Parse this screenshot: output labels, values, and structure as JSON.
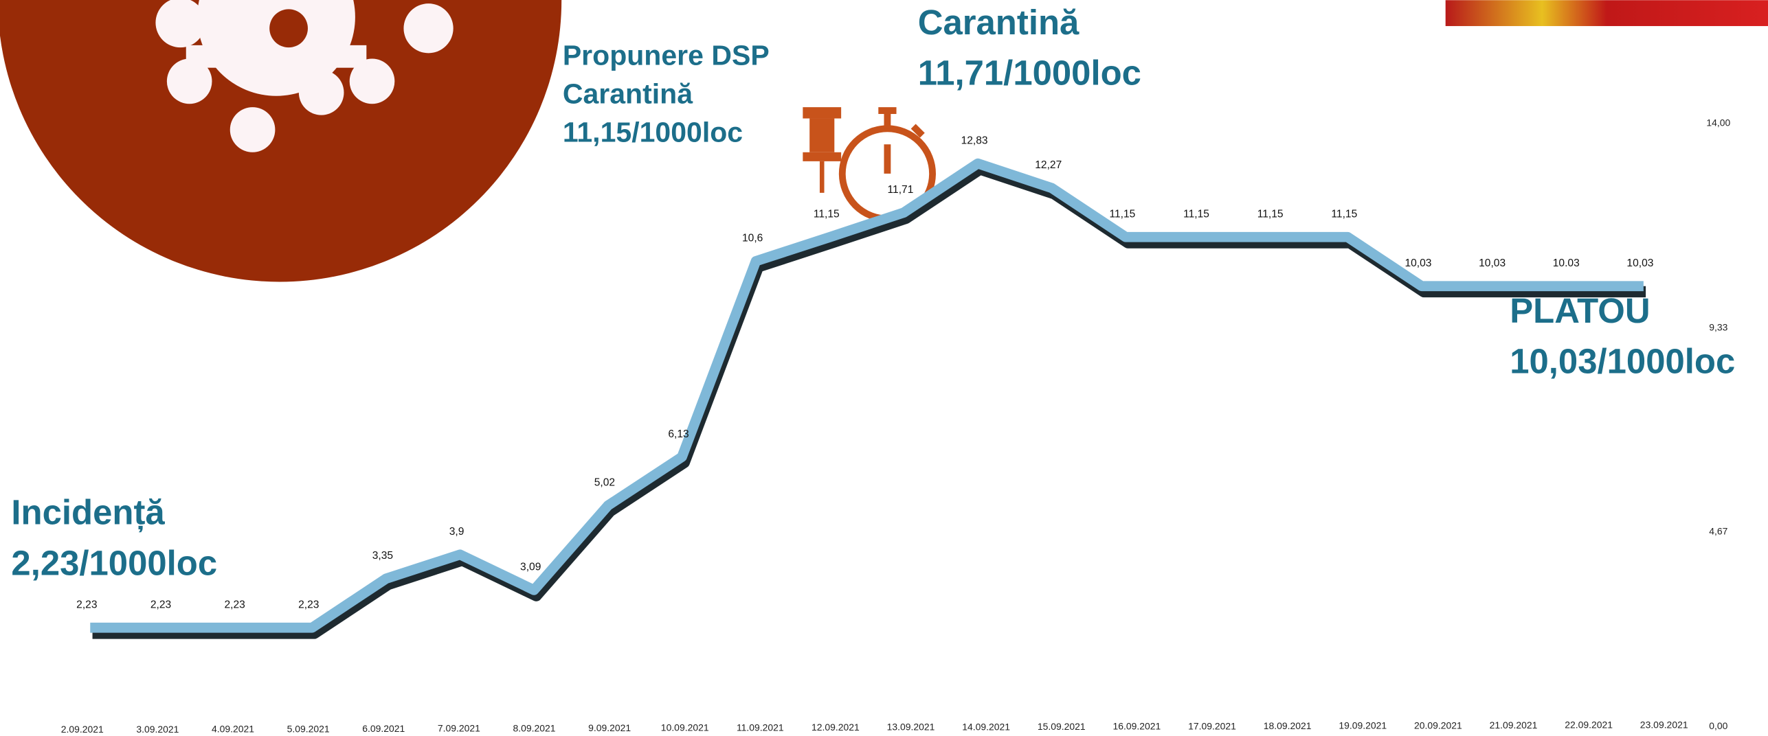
{
  "chart_data": {
    "type": "line",
    "categories": [
      "2.09.2021",
      "3.09.2021",
      "4.09.2021",
      "5.09.2021",
      "6.09.2021",
      "7.09.2021",
      "8.09.2021",
      "9.09.2021",
      "10.09.2021",
      "11.09.2021",
      "12.09.2021",
      "13.09.2021",
      "14.09.2021",
      "15.09.2021",
      "16.09.2021",
      "17.09.2021",
      "18.09.2021",
      "19.09.2021",
      "20.09.2021",
      "21.09.2021",
      "22.09.2021",
      "23.09.2021"
    ],
    "series": [
      {
        "color": "#7fb8d8",
        "values": [
          2.23,
          2.23,
          2.23,
          2.23,
          3.35,
          3.9,
          3.09,
          5.02,
          6.13,
          10.6,
          11.15,
          11.71,
          12.83,
          12.27,
          11.15,
          11.15,
          11.15,
          11.15,
          10.03,
          10.03,
          10.03,
          10.03
        ],
        "value_labels": [
          "2,23",
          "2,23",
          "2,23",
          "2,23",
          "3,35",
          "3,9",
          "3,09",
          "5,02",
          "6,13",
          "10,6",
          "11,15",
          "11,71",
          "12,83",
          "12,27",
          "11,15",
          "11,15",
          "11,15",
          "11,15",
          "10,03",
          "10,03",
          "10.03",
          "10,03"
        ]
      }
    ],
    "ylim": [
      0,
      14
    ],
    "yticks": [
      {
        "value": 0,
        "label": "0,00"
      },
      {
        "value": 4.67,
        "label": "4,67"
      },
      {
        "value": 9.33,
        "label": "9,33"
      },
      {
        "value": 14,
        "label": "14,00"
      }
    ],
    "annotations": [
      {
        "lines": [
          "Incidență",
          "2,23/1000loc"
        ]
      },
      {
        "lines": [
          "Propunere DSP",
          "Carantină",
          "11,15/1000loc"
        ]
      },
      {
        "lines": [
          "Carantină",
          "11,71/1000loc"
        ]
      },
      {
        "lines": [
          "PLATOU",
          "10,03/1000loc"
        ]
      }
    ]
  }
}
